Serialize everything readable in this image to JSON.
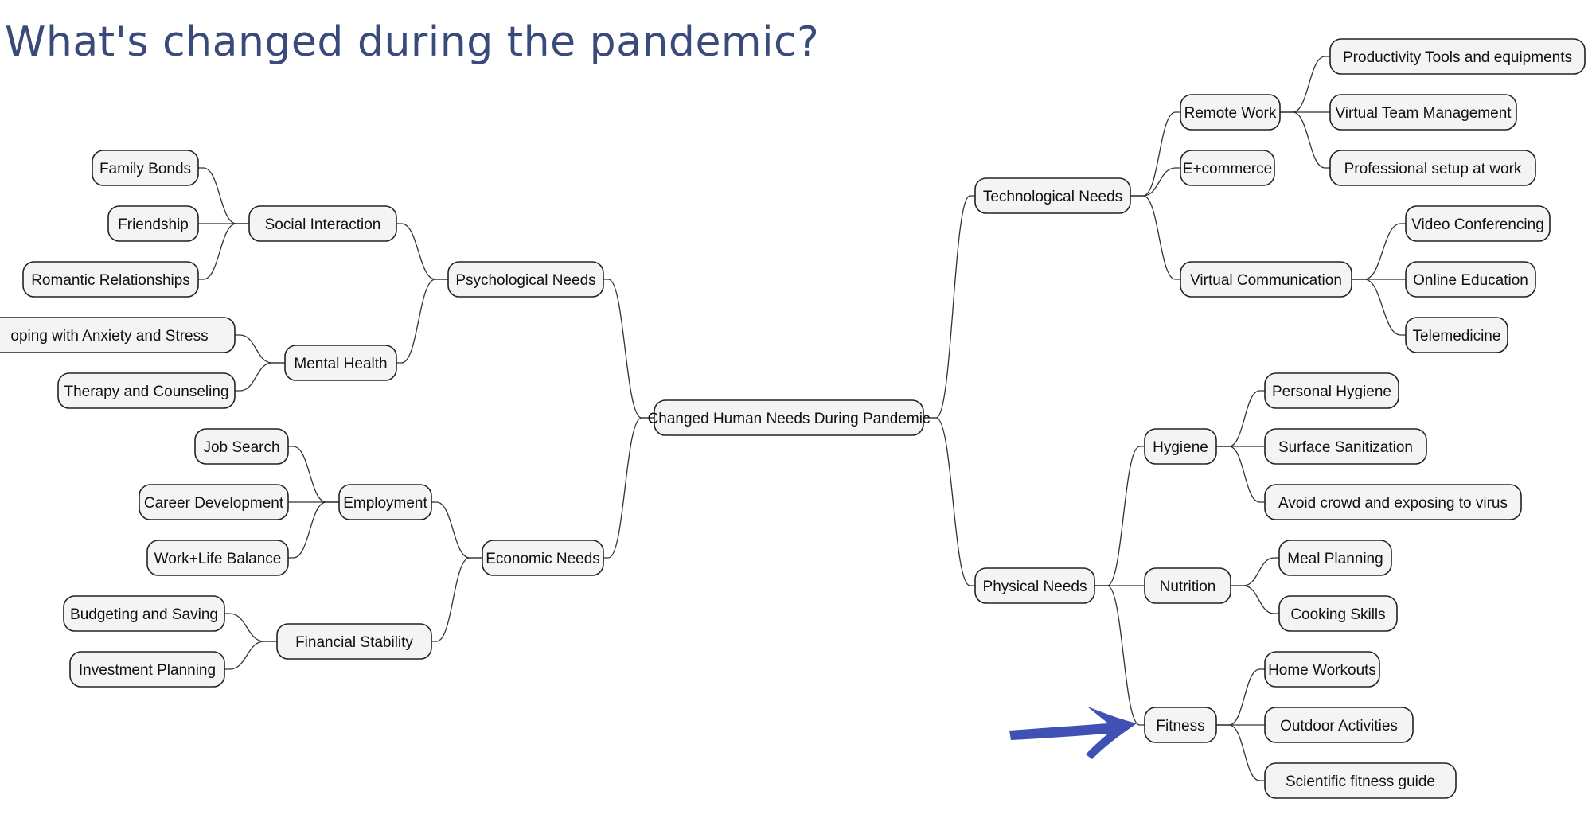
{
  "title": "What's changed during the pandemic?",
  "colors": {
    "title": "#3a4a7a",
    "arrow": "#3f51b5",
    "node_fill": "#f4f4f4",
    "node_border": "#222222"
  },
  "mindmap": {
    "root": "Changed Human Needs During Pandemic",
    "psychological": {
      "label": "Psychological Needs",
      "social_interaction": {
        "label": "Social Interaction",
        "items": [
          "Family Bonds",
          "Friendship",
          "Romantic Relationships"
        ]
      },
      "mental_health": {
        "label": "Mental Health",
        "items": [
          "oping with Anxiety and Stress",
          "Therapy and Counseling"
        ]
      }
    },
    "economic": {
      "label": "Economic Needs",
      "employment": {
        "label": "Employment",
        "items": [
          "Job Search",
          "Career Development",
          "Work+Life Balance"
        ]
      },
      "financial_stability": {
        "label": "Financial Stability",
        "items": [
          "Budgeting and Saving",
          "Investment Planning"
        ]
      }
    },
    "technological": {
      "label": "Technological Needs",
      "remote_work": {
        "label": "Remote Work",
        "items": [
          "Productivity Tools and equipments",
          "Virtual Team Management",
          "Professional setup at work"
        ]
      },
      "ecommerce": {
        "label": "E+commerce"
      },
      "virtual_communication": {
        "label": "Virtual Communication",
        "items": [
          "Video Conferencing",
          "Online Education",
          "Telemedicine"
        ]
      }
    },
    "physical": {
      "label": "Physical Needs",
      "hygiene": {
        "label": "Hygiene",
        "items": [
          "Personal Hygiene",
          "Surface Sanitization",
          "Avoid crowd and exposing to virus"
        ]
      },
      "nutrition": {
        "label": "Nutrition",
        "items": [
          "Meal Planning",
          "Cooking Skills"
        ]
      },
      "fitness": {
        "label": "Fitness",
        "items": [
          "Home Workouts",
          "Outdoor Activities",
          "Scientific fitness guide"
        ]
      }
    }
  }
}
